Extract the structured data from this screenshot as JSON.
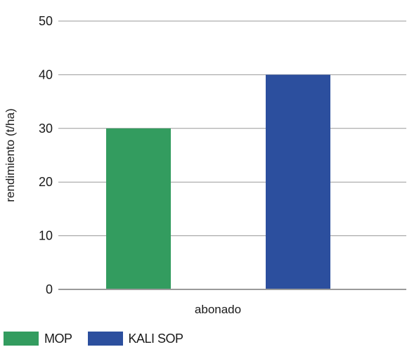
{
  "chart_data": {
    "type": "bar",
    "categories": [
      "abonado"
    ],
    "series": [
      {
        "name": "MOP",
        "values": [
          30
        ],
        "color": "#339c5f"
      },
      {
        "name": "KALI SOP",
        "values": [
          40
        ],
        "color": "#2c4f9e"
      }
    ],
    "xlabel": "abonado",
    "ylabel": "rendimiento (t/ha)",
    "ylim": [
      0,
      50
    ],
    "yticks": [
      0,
      10,
      20,
      30,
      40,
      50
    ],
    "grid": true,
    "legend_position": "bottom-left"
  }
}
